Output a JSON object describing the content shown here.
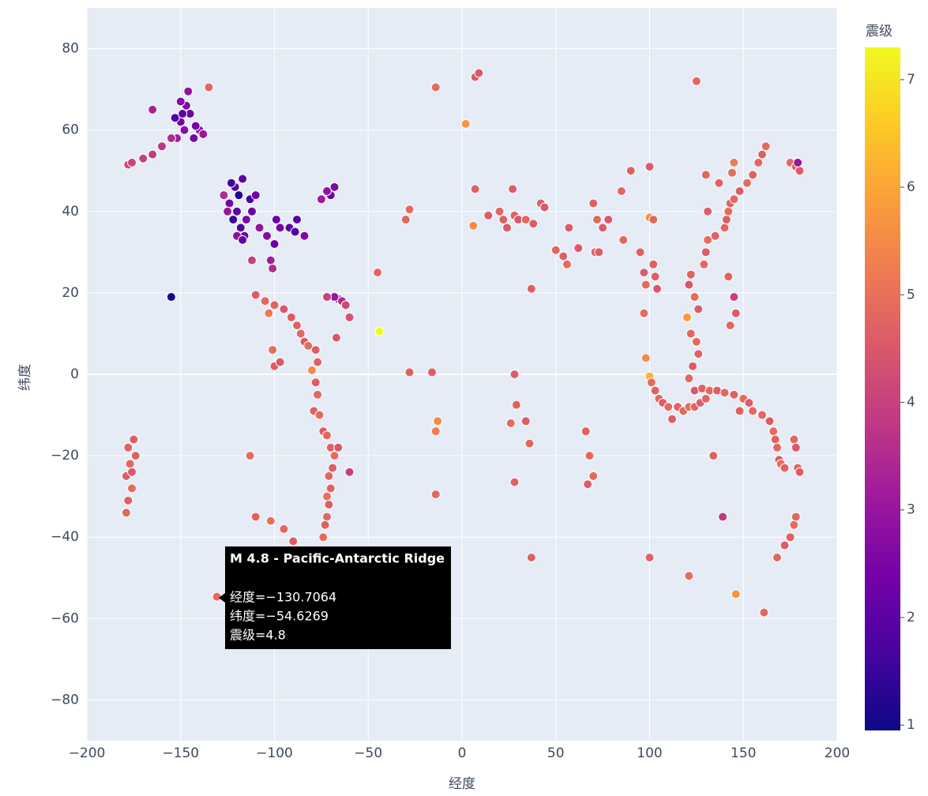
{
  "chart_data": {
    "type": "scatter",
    "x_label": "经度",
    "y_label": "纬度",
    "xlim": [
      -200,
      200
    ],
    "ylim": [
      -90,
      90
    ],
    "xticks": [
      {
        "value": -200,
        "label": "−200"
      },
      {
        "value": -150,
        "label": "−150"
      },
      {
        "value": -100,
        "label": "−100"
      },
      {
        "value": -50,
        "label": "−50"
      },
      0,
      50,
      100,
      150,
      200
    ],
    "yticks": [
      {
        "value": -80,
        "label": "−80"
      },
      {
        "value": -60,
        "label": "−60"
      },
      {
        "value": -40,
        "label": "−40"
      },
      {
        "value": -20,
        "label": "−20"
      },
      0,
      20,
      40,
      60,
      80
    ],
    "grid": true,
    "colorscale": [
      "#0d0887",
      "#46039f",
      "#7201a8",
      "#9c179e",
      "#bd3786",
      "#d8576b",
      "#ed7953",
      "#fb9f3a",
      "#fdca26",
      "#f0f921"
    ],
    "colorbar": {
      "title": "震级",
      "lim": [
        0.95,
        7.3
      ],
      "ticks": [
        1,
        2,
        3,
        4,
        5,
        6,
        7
      ]
    },
    "x": [
      -150,
      -148,
      -152,
      -145,
      -147,
      -155,
      -160,
      -165,
      -170,
      -178,
      -176,
      -140,
      -142,
      -138,
      -150,
      -135,
      -165,
      -146,
      -153,
      -149,
      -143,
      -122,
      -120,
      -118,
      -116,
      -124,
      -121,
      -119,
      -117,
      -115,
      -113,
      -125,
      -127,
      -112,
      -120,
      -117,
      -123,
      -110,
      -108,
      -104,
      -100,
      -97,
      -92,
      -89,
      -84,
      -102,
      -101,
      -112,
      -99,
      -88,
      -68,
      -70,
      -72,
      -75,
      -155,
      -66,
      -68,
      -64,
      -62,
      -72,
      -60,
      -67,
      -110,
      -105,
      -103,
      -100,
      -95,
      -91,
      -88,
      -86,
      -84,
      -82,
      -80,
      -78,
      -77,
      -101,
      -100,
      -97,
      -78,
      -77,
      -79,
      -76,
      -74,
      -72,
      -70,
      -68,
      -69,
      -71,
      -70,
      -72,
      -71,
      -72,
      -73,
      -74,
      -66,
      -60,
      -75,
      -110,
      -102,
      -95,
      -90,
      -130.7064,
      -113,
      -178,
      -177,
      -179,
      -176,
      -178,
      -179,
      -175,
      -174,
      -176,
      -45,
      -44,
      -30,
      -28,
      -28,
      -16,
      -14,
      -14,
      -13,
      -14,
      7,
      9,
      2,
      7,
      6,
      14,
      20,
      22,
      24,
      27,
      28,
      30,
      34,
      38,
      42,
      44,
      28,
      29,
      26,
      34,
      36,
      28,
      37,
      37,
      50,
      54,
      56,
      57,
      62,
      66,
      68,
      70,
      67,
      70,
      72,
      75,
      78,
      71,
      73,
      85,
      90,
      100,
      86,
      95,
      97,
      98,
      102,
      100,
      102,
      97,
      98,
      100,
      101,
      103,
      105,
      107,
      110,
      115,
      118,
      121,
      124,
      127,
      130,
      124,
      128,
      132,
      136,
      140,
      145,
      150,
      153,
      155,
      148,
      112,
      104,
      103,
      120,
      122,
      125,
      126,
      123,
      121,
      126,
      124,
      121,
      122,
      129,
      130,
      131,
      135,
      140,
      141,
      142,
      143,
      145,
      148,
      152,
      155,
      158,
      160,
      162,
      137,
      130,
      131,
      125,
      145,
      144,
      142,
      145,
      146,
      143,
      139,
      134,
      121,
      146,
      161,
      160,
      164,
      166,
      167,
      168,
      169,
      170,
      172,
      177,
      178,
      179,
      180,
      178,
      177,
      175,
      172,
      168,
      175,
      178,
      180,
      179,
      100
    ],
    "y": [
      62,
      60,
      58,
      64,
      66,
      58,
      56,
      54,
      53,
      51.5,
      52,
      60,
      61,
      59,
      67,
      70.5,
      65,
      69.5,
      63,
      64,
      58,
      38,
      40,
      36,
      34,
      42,
      46,
      44,
      48,
      38,
      43,
      40,
      44,
      40,
      34,
      33,
      47,
      44,
      36,
      34,
      32,
      36,
      36,
      35,
      34,
      28,
      26,
      28,
      38,
      38,
      46,
      44,
      45,
      43,
      19,
      18.5,
      19,
      18,
      17,
      19,
      14,
      9,
      19.5,
      18,
      15,
      17,
      16,
      14,
      12,
      10,
      8,
      7,
      1,
      6,
      3,
      6,
      2,
      3,
      -2,
      -5,
      -9,
      -10,
      -14,
      -15,
      -18,
      -20,
      -23,
      -25,
      -28,
      -30,
      -32,
      -35,
      -37,
      -40,
      -18,
      -24,
      -44,
      -35,
      -36,
      -38,
      -41,
      -54.6269,
      -20,
      -18,
      -22,
      -25,
      -28,
      -31,
      -34,
      -16,
      -20,
      -24,
      25,
      10.5,
      38,
      40.5,
      0.5,
      0.5,
      70.5,
      -14,
      -11.5,
      -29.5,
      73,
      74,
      61.5,
      45.5,
      36.5,
      39,
      40,
      38,
      36,
      45.5,
      39,
      38,
      38,
      37,
      42,
      41,
      0,
      -7.5,
      -12,
      -11.5,
      -17,
      -26.5,
      21,
      -45,
      30.5,
      29,
      27,
      36,
      31,
      -14,
      -20,
      -25,
      -27,
      42,
      38,
      36,
      38,
      30,
      30,
      45,
      50,
      51,
      33,
      30,
      25,
      22,
      27,
      38.5,
      38,
      15,
      4,
      -0.5,
      -2,
      -4,
      -6,
      -7,
      -8,
      -8,
      -9,
      -8,
      -8,
      -7,
      -6,
      -4,
      -3.5,
      -4,
      -4,
      -4.5,
      -5,
      -6,
      -7,
      -9,
      -9,
      -11,
      21,
      24,
      14,
      10,
      8,
      5,
      2,
      -1,
      16,
      19,
      22,
      24.5,
      27,
      30,
      33,
      34,
      36,
      38,
      40,
      42,
      43,
      45,
      47,
      49,
      52,
      54,
      56,
      47,
      49,
      40,
      72,
      52,
      49.5,
      24,
      19,
      15,
      12,
      -35,
      -20,
      -49.5,
      -54,
      -58.5,
      -10,
      -11.5,
      -14,
      -16,
      -18,
      -21,
      -22,
      -23,
      -16,
      -18,
      -23,
      -24,
      -35,
      -37,
      -40,
      -42,
      -45,
      52,
      51,
      50,
      52,
      -45
    ],
    "magnitude": [
      2.5,
      2.8,
      3.2,
      2.2,
      2.6,
      3.5,
      3.8,
      3.9,
      4.0,
      4.2,
      4.1,
      2.9,
      2.4,
      3.0,
      2.7,
      4.8,
      3.3,
      2.9,
      1.8,
      2.1,
      2.5,
      1.5,
      2.0,
      1.8,
      2.2,
      2.5,
      1.9,
      1.2,
      2.0,
      2.6,
      1.7,
      3.0,
      3.5,
      2.3,
      2.8,
      2.1,
      1.6,
      2.4,
      2.9,
      2.7,
      2.2,
      2.5,
      2.0,
      1.8,
      2.6,
      3.2,
      3.5,
      4.0,
      2.2,
      1.9,
      2.6,
      2.3,
      2.9,
      3.1,
      1.0,
      2.8,
      3.0,
      3.5,
      4.2,
      4.0,
      4.4,
      4.5,
      4.6,
      4.8,
      5.2,
      4.7,
      4.5,
      4.6,
      4.7,
      4.8,
      4.5,
      4.9,
      5.5,
      4.6,
      4.7,
      4.9,
      4.6,
      4.5,
      4.6,
      4.8,
      4.7,
      4.9,
      4.6,
      4.8,
      4.7,
      4.9,
      4.6,
      4.8,
      4.7,
      5.0,
      4.6,
      4.8,
      4.7,
      4.9,
      4.5,
      4.0,
      4.6,
      4.7,
      5.0,
      4.8,
      4.6,
      4.8,
      4.9,
      4.7,
      4.8,
      4.6,
      4.9,
      4.7,
      4.8,
      4.6,
      4.7,
      4.5,
      4.8,
      7.3,
      4.8,
      4.9,
      4.7,
      4.6,
      4.9,
      5.2,
      5.5,
      4.8,
      4.6,
      4.5,
      5.7,
      4.7,
      5.5,
      4.6,
      4.8,
      4.7,
      4.5,
      4.6,
      4.7,
      4.5,
      4.8,
      4.6,
      4.7,
      4.5,
      4.6,
      4.7,
      4.9,
      4.6,
      4.8,
      4.7,
      4.6,
      4.7,
      4.8,
      4.7,
      4.9,
      4.6,
      4.5,
      4.7,
      4.8,
      4.9,
      4.6,
      4.7,
      4.8,
      4.6,
      4.5,
      4.7,
      4.6,
      4.8,
      4.7,
      4.6,
      4.8,
      4.7,
      4.6,
      4.9,
      4.7,
      5.6,
      4.8,
      4.9,
      5.5,
      6.2,
      4.9,
      4.7,
      4.8,
      4.6,
      4.9,
      4.7,
      4.8,
      4.9,
      4.7,
      4.6,
      4.8,
      4.5,
      4.7,
      4.9,
      4.6,
      4.8,
      4.7,
      4.9,
      4.6,
      4.8,
      4.7,
      4.6,
      4.5,
      4.7,
      5.8,
      4.8,
      4.9,
      4.7,
      4.6,
      4.8,
      4.6,
      4.9,
      4.5,
      4.7,
      4.8,
      4.6,
      4.9,
      4.7,
      4.8,
      4.6,
      4.9,
      4.7,
      4.8,
      4.6,
      4.9,
      4.7,
      4.8,
      4.6,
      4.9,
      4.7,
      4.8,
      4.6,
      4.8,
      5.2,
      4.9,
      4.7,
      4.0,
      4.6,
      4.8,
      3.8,
      4.7,
      4.9,
      5.7,
      4.8,
      4.8,
      4.6,
      4.9,
      4.7,
      4.8,
      4.6,
      4.9,
      4.7,
      4.8,
      4.5,
      4.7,
      4.6,
      4.8,
      4.9,
      4.7,
      4.6,
      4.8,
      4.9,
      4.7,
      4.6,
      3.0,
      4.7
    ],
    "hover": {
      "title": "M 4.8 - Pacific-Antarctic Ridge",
      "lines": [
        "经度=−130.7064",
        "纬度=−54.6269",
        "震级=4.8"
      ]
    }
  }
}
